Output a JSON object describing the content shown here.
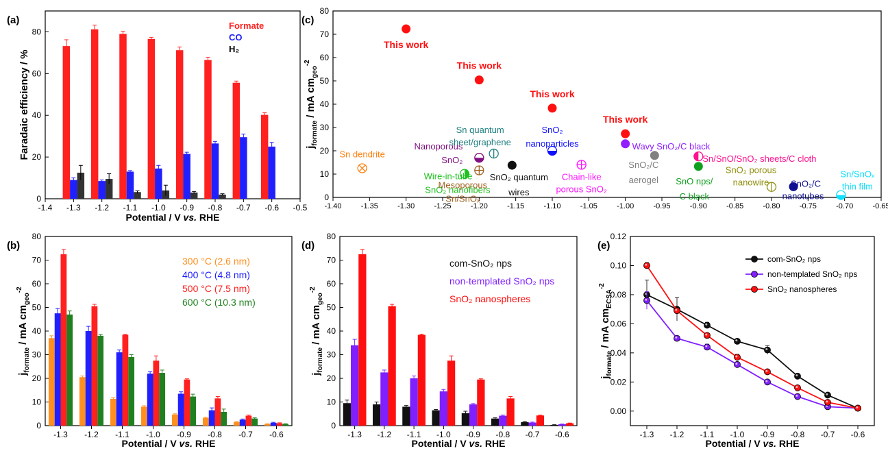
{
  "chart_data": [
    {
      "panel": "(a)",
      "type": "bar",
      "xlabel": "Potential / V vs. RHE",
      "ylabel": "Faradaic efficiency / %",
      "xlim": [
        -1.4,
        -0.5
      ],
      "ylim": [
        0,
        90
      ],
      "x_ticks": [
        "-1.4",
        "-1.3",
        "-1.2",
        "-1.1",
        "-1.0",
        "-0.9",
        "-0.8",
        "-0.7",
        "-0.6",
        "-0.5"
      ],
      "y_ticks": [
        "0",
        "20",
        "40",
        "60",
        "80"
      ],
      "x": [
        -1.3,
        -1.2,
        -1.1,
        -1.0,
        -0.9,
        -0.8,
        -0.7,
        -0.6
      ],
      "series": [
        {
          "name": "Formate",
          "color": "#ff2020",
          "values": [
            73.2,
            81.2,
            79.0,
            76.6,
            71.2,
            66.5,
            55.6,
            40.2
          ],
          "errors": [
            3.0,
            2.0,
            1.2,
            0.8,
            1.5,
            1.3,
            0.8,
            1.0
          ]
        },
        {
          "name": "CO",
          "color": "#2020ff",
          "values": [
            9.0,
            8.5,
            13.0,
            14.5,
            21.5,
            26.5,
            29.5,
            25.0
          ],
          "errors": [
            1.0,
            0.5,
            0.5,
            1.5,
            0.8,
            1.0,
            1.5,
            2.0
          ]
        },
        {
          "name": "H2",
          "color": "#333333",
          "values": [
            12.5,
            9.5,
            3.2,
            4.0,
            3.0,
            2.0,
            null,
            null
          ],
          "errors": [
            3.5,
            2.5,
            0.6,
            2.5,
            0.5,
            0.4,
            null,
            null
          ]
        }
      ],
      "legend": [
        "Formate",
        "CO",
        "H₂"
      ]
    },
    {
      "panel": "(b)",
      "type": "bar",
      "xlabel": "Potential / V vs. RHE",
      "ylabel": "j_formate / mA cm_geo^-2",
      "ylim": [
        0,
        80
      ],
      "categories": [
        "-1.3",
        "-1.2",
        "-1.1",
        "-1.0",
        "-0.9",
        "-0.8",
        "-0.7",
        "-0.6"
      ],
      "y_ticks": [
        "0",
        "10",
        "20",
        "30",
        "40",
        "50",
        "60",
        "70",
        "80"
      ],
      "series": [
        {
          "name": "300 °C (2.6 nm)",
          "color": "#ff9020",
          "values": [
            37.0,
            20.5,
            11.3,
            8.0,
            4.7,
            3.3,
            1.5,
            0.7
          ]
        },
        {
          "name": "400 °C (4.8 nm)",
          "color": "#2020ff",
          "values": [
            47.5,
            40.0,
            31.0,
            22.0,
            13.5,
            6.5,
            2.5,
            1.2
          ]
        },
        {
          "name": "500 °C (7.5 nm)",
          "color": "#ff2020",
          "values": [
            72.5,
            50.5,
            38.4,
            27.5,
            19.5,
            11.5,
            4.2,
            1.0
          ]
        },
        {
          "name": "600 °C (10.3 nm)",
          "color": "#208020",
          "values": [
            47.0,
            38.0,
            29.0,
            22.3,
            12.3,
            5.8,
            3.0,
            0.7
          ]
        }
      ],
      "errors": [
        [
          1.0,
          0.5,
          0.5,
          0.4,
          0.3,
          0.3,
          0.2,
          0.1
        ],
        [
          2.0,
          2.0,
          1.0,
          0.8,
          0.8,
          1.0,
          0.3,
          0.2
        ],
        [
          2.0,
          0.8,
          0.3,
          2.0,
          0.3,
          0.8,
          0.3,
          0.2
        ],
        [
          1.5,
          0.5,
          1.0,
          1.2,
          1.0,
          1.2,
          0.3,
          0.1
        ]
      ]
    },
    {
      "panel": "(c)",
      "type": "scatter",
      "xlabel": "",
      "ylabel": "j_formate / mA cm_geo^-2",
      "xlim": [
        -1.4,
        -0.65
      ],
      "ylim": [
        0,
        80
      ],
      "x_ticks": [
        "-1.40",
        "-1.35",
        "-1.30",
        "-1.25",
        "-1.20",
        "-1.15",
        "-1.10",
        "-1.05",
        "-1.00",
        "-0.95",
        "-0.90",
        "-0.85",
        "-0.80",
        "-0.75",
        "-0.70",
        "-0.65"
      ],
      "y_ticks": [
        "0",
        "10",
        "20",
        "30",
        "40",
        "50",
        "60",
        "70",
        "80"
      ],
      "points": [
        {
          "x": -1.3,
          "y": 72.3,
          "marker": "filled",
          "color": "#ff1010",
          "label": [
            "This work"
          ],
          "bold": true
        },
        {
          "x": -1.2,
          "y": 50.4,
          "marker": "filled",
          "color": "#ff1010",
          "label": [
            "This work"
          ],
          "bold": true
        },
        {
          "x": -1.1,
          "y": 38.3,
          "marker": "filled",
          "color": "#ff1010",
          "label": [
            "This work"
          ],
          "bold": true
        },
        {
          "x": -1.0,
          "y": 27.3,
          "marker": "filled",
          "color": "#ff1010",
          "label": [
            "This work"
          ],
          "bold": true
        },
        {
          "x": -1.36,
          "y": 12.5,
          "marker": "cross-x",
          "color": "#ff8010",
          "label": [
            "Sn dendrite"
          ]
        },
        {
          "x": -1.22,
          "y": 10.1,
          "marker": "half-right",
          "color": "#20c020",
          "label": [
            "Wire-in-tube",
            "SnO₂ nanofibers"
          ]
        },
        {
          "x": -1.2,
          "y": 17.0,
          "marker": "half-bottom",
          "color": "#801080",
          "label": [
            "Nanoporous",
            "SnO₂"
          ]
        },
        {
          "x": -1.2,
          "y": 11.6,
          "marker": "cross-plus",
          "color": "#a06020",
          "label": [
            "Mesoporous",
            "Sn/SnOₓ"
          ]
        },
        {
          "x": -1.18,
          "y": 18.8,
          "marker": "vbar",
          "color": "#208080",
          "label": [
            "Sn quantum",
            "sheet/graphene"
          ]
        },
        {
          "x": -1.155,
          "y": 13.8,
          "marker": "filled",
          "color": "#101010",
          "label": [
            "SnO₂ quantum",
            "wires"
          ]
        },
        {
          "x": -1.1,
          "y": 20.0,
          "marker": "half-bottom",
          "color": "#1010ff",
          "label": [
            "SnO₂",
            "nanoparticles"
          ]
        },
        {
          "x": -1.06,
          "y": 14.0,
          "marker": "cross-plus",
          "color": "#ff10ff",
          "label": [
            "Chain-like",
            "porous SnO₂"
          ]
        },
        {
          "x": -1.0,
          "y": 23.0,
          "marker": "filled",
          "color": "#9020ff",
          "label": [
            "Wavy SnO₂/C black"
          ]
        },
        {
          "x": -0.96,
          "y": 18.0,
          "marker": "filled",
          "color": "#808080",
          "label": [
            "SnO₂/C",
            "aerogel"
          ]
        },
        {
          "x": -0.9,
          "y": 13.3,
          "marker": "filled",
          "color": "#10a020",
          "label": [
            "SnO nps/",
            "C black"
          ]
        },
        {
          "x": -0.9,
          "y": 17.6,
          "marker": "half-left",
          "color": "#ff1090",
          "label": [
            "Sn/SnO/SnO₂ sheets/C cloth"
          ]
        },
        {
          "x": -0.8,
          "y": 4.5,
          "marker": "vbar",
          "color": "#909010",
          "label": [
            "SnO₂ porous",
            "nanowire"
          ]
        },
        {
          "x": -0.77,
          "y": 4.6,
          "marker": "filled",
          "color": "#101090",
          "label": [
            "SnO₂/C",
            "nanotubes"
          ]
        },
        {
          "x": -0.705,
          "y": 1.0,
          "marker": "half-bottom",
          "color": "#10e0ff",
          "label": [
            "Sn/SnOₓ",
            "thin film"
          ]
        }
      ]
    },
    {
      "panel": "(d)",
      "type": "bar",
      "xlabel": "Potential / V vs. RHE",
      "ylabel": "j_formate / mA cm_geo^-2",
      "ylim": [
        0,
        80
      ],
      "categories": [
        "-1.3",
        "-1.2",
        "-1.1",
        "-1.0",
        "-0.9",
        "-0.8",
        "-0.7",
        "-0.6"
      ],
      "y_ticks": [
        "0",
        "10",
        "20",
        "30",
        "40",
        "50",
        "60",
        "70",
        "80"
      ],
      "series": [
        {
          "name": "com-SnO₂ nps",
          "color": "#111111",
          "values": [
            9.5,
            9.0,
            8.0,
            6.5,
            5.3,
            3.0,
            1.5,
            0.3
          ]
        },
        {
          "name": "non-templated SnO₂ nps",
          "color": "#8020ff",
          "values": [
            34.0,
            22.5,
            20.0,
            14.5,
            9.0,
            4.2,
            1.3,
            0.6
          ]
        },
        {
          "name": "SnO₂ nanospheres",
          "color": "#ff1010",
          "values": [
            72.5,
            50.5,
            38.4,
            27.5,
            19.5,
            11.5,
            4.3,
            1.0
          ]
        }
      ],
      "errors": [
        [
          1.3,
          1.0,
          0.5,
          0.3,
          0.8,
          0.3,
          0.2,
          0.1
        ],
        [
          2.5,
          1.0,
          1.0,
          0.8,
          0.3,
          0.3,
          0.2,
          0.1
        ],
        [
          2.0,
          0.8,
          0.3,
          2.0,
          0.3,
          0.8,
          0.2,
          0.1
        ]
      ]
    },
    {
      "panel": "(e)",
      "type": "line",
      "xlabel": "Potential / V vs. RHE",
      "ylabel": "j_formate / mA cm_ECSA^-2",
      "ylim": [
        -0.01,
        0.12
      ],
      "x": [
        -1.3,
        -1.2,
        -1.1,
        -1.0,
        -0.9,
        -0.8,
        -0.7,
        -0.6
      ],
      "x_ticks": [
        "-1.3",
        "-1.2",
        "-1.1",
        "-1.0",
        "-0.9",
        "-0.8",
        "-0.7",
        "-0.6"
      ],
      "y_ticks": [
        "0.00",
        "0.02",
        "0.04",
        "0.06",
        "0.08",
        "0.10",
        "0.12"
      ],
      "series": [
        {
          "name": "com-SnO₂ nps",
          "color": "#111111",
          "values": [
            0.08,
            0.07,
            0.059,
            0.048,
            0.042,
            0.024,
            0.011,
            0.002
          ],
          "errors": [
            0.01,
            0.008,
            0.002,
            0.001,
            0.003,
            0.001,
            0.001,
            0.0005
          ]
        },
        {
          "name": "non-templated SnO₂ nps",
          "color": "#8020ff",
          "values": [
            0.076,
            0.05,
            0.044,
            0.032,
            0.02,
            0.01,
            0.003,
            0.002
          ],
          "errors": [
            0.006,
            0.001,
            0.002,
            0.001,
            0.001,
            0.001,
            0.0005,
            0.0005
          ]
        },
        {
          "name": "SnO₂ nanospheres",
          "color": "#ff1010",
          "values": [
            0.1,
            0.069,
            0.052,
            0.037,
            0.027,
            0.016,
            0.006,
            0.002
          ],
          "errors": [
            0.002,
            0.001,
            0.001,
            0.002,
            0.001,
            0.001,
            0.0005,
            0.0005
          ]
        }
      ]
    }
  ],
  "panel_labels": [
    "(a)",
    "(b)",
    "(c)",
    "(d)",
    "(e)"
  ]
}
